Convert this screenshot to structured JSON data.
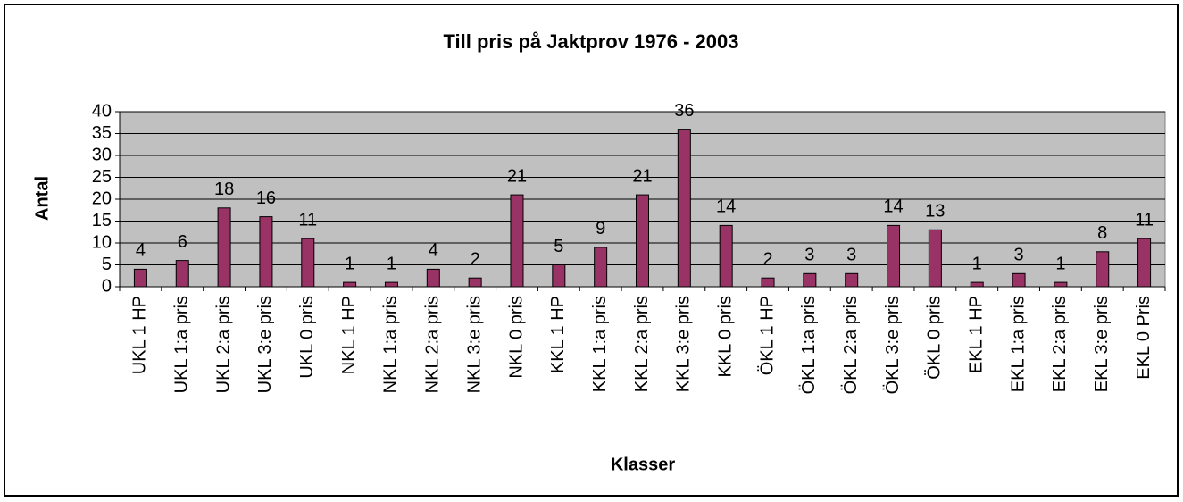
{
  "chart_data": {
    "type": "bar",
    "title": "Till pris på Jaktprov 1976 - 2003",
    "x_label": "Klasser",
    "y_label": "Antal",
    "categories": [
      "UKL 1 HP",
      "UKL 1:a pris",
      "UKL 2:a pris",
      "UKL 3:e pris",
      "UKL 0 pris",
      "NKL 1 HP",
      "NKL 1:a pris",
      "NKL 2:a pris",
      "NKL 3:e pris",
      "NKL 0 pris",
      "KKL 1 HP",
      "KKL 1:a pris",
      "KKL 2:a pris",
      "KKL 3:e pris",
      "KKL 0 pris",
      "ÖKL 1 HP",
      "ÖKL 1:a pris",
      "ÖKL 2:a pris",
      "ÖKL 3:e pris",
      "ÖKL 0 pris",
      "EKL 1 HP",
      "EKL 1:a pris",
      "EKL 2:a pris",
      "EKL 3:e pris",
      "EKL 0 Pris"
    ],
    "values": [
      4,
      6,
      18,
      16,
      11,
      1,
      1,
      4,
      2,
      21,
      5,
      9,
      21,
      36,
      14,
      2,
      3,
      3,
      14,
      13,
      1,
      3,
      1,
      8,
      11
    ],
    "color": "#993366",
    "ylim": [
      0,
      40
    ],
    "yticks": [
      0,
      5,
      10,
      15,
      20,
      25,
      30,
      35,
      40
    ],
    "grid": true
  }
}
